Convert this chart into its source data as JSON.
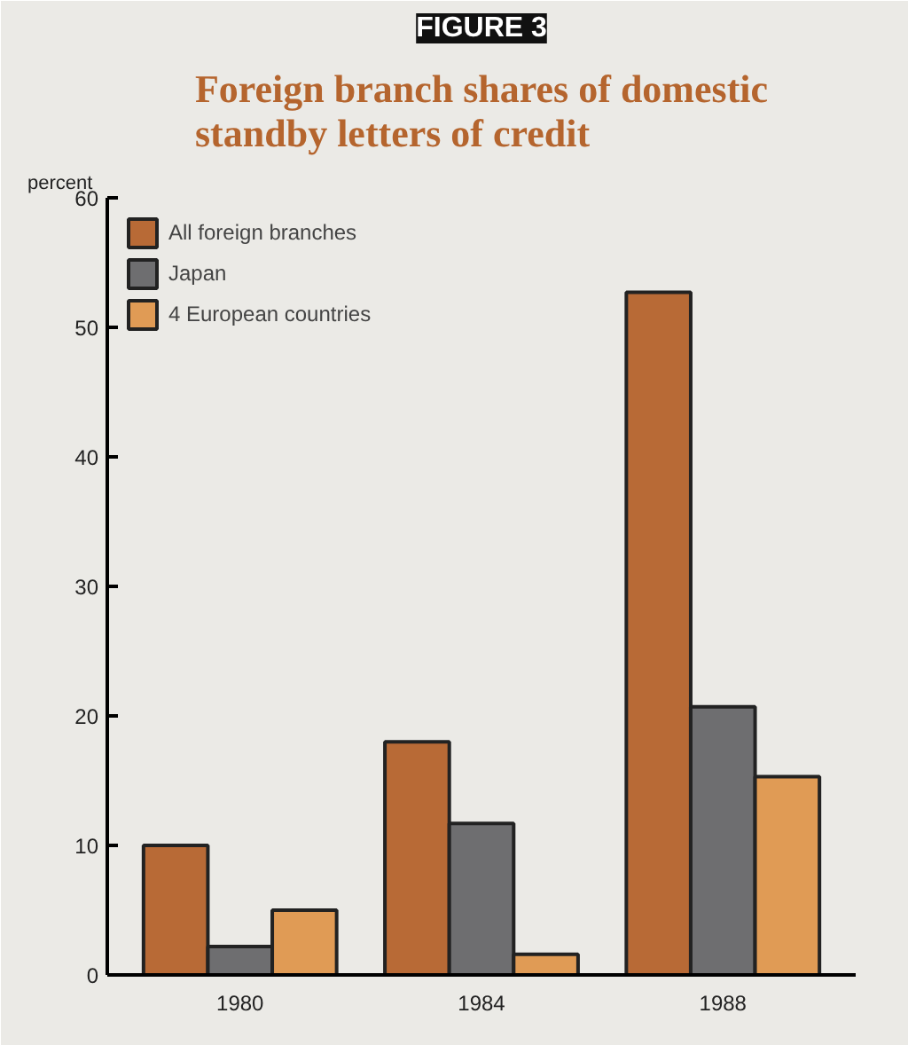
{
  "chart_data": {
    "type": "bar",
    "title": "Foreign branch shares of domestic standby letters of credit",
    "ylabel": "percent",
    "annotations": [
      "FIGURE 3"
    ],
    "categories": [
      "1980",
      "1984",
      "1988"
    ],
    "series": [
      {
        "name": "All foreign branches",
        "color": "#b86a36",
        "values": [
          10,
          18,
          52.7
        ]
      },
      {
        "name": "Japan",
        "color": "#6e6e70",
        "values": [
          2.2,
          11.7,
          20.7
        ]
      },
      {
        "name": "4 European countries",
        "color": "#e09b55",
        "values": [
          5,
          1.6,
          15.3
        ]
      }
    ],
    "ylim": [
      0,
      60
    ],
    "yticks": [
      0,
      10,
      20,
      30,
      40,
      50,
      60
    ],
    "grid": false,
    "legend": "top left"
  }
}
